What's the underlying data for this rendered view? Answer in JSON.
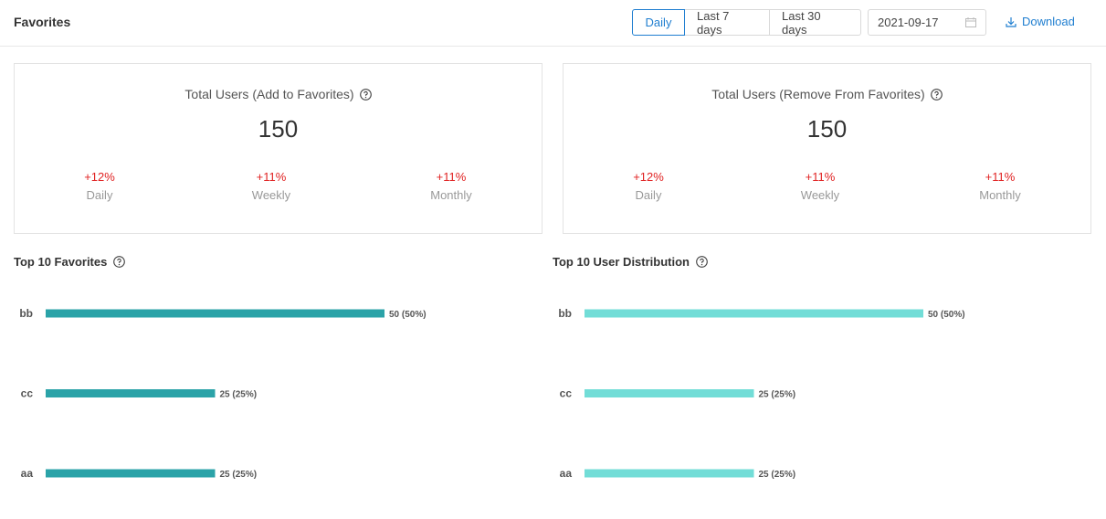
{
  "header": {
    "title": "Favorites",
    "tabs": [
      {
        "label": "Daily",
        "active": true
      },
      {
        "label": "Last 7 days",
        "active": false
      },
      {
        "label": "Last 30 days",
        "active": false
      }
    ],
    "date": "2021-09-17",
    "download_label": "Download"
  },
  "cards": [
    {
      "title": "Total Users (Add to Favorites)",
      "value": "150",
      "stats": [
        {
          "delta": "+12%",
          "label": "Daily"
        },
        {
          "delta": "+11%",
          "label": "Weekly"
        },
        {
          "delta": "+11%",
          "label": "Monthly"
        }
      ]
    },
    {
      "title": "Total Users (Remove From Favorites)",
      "value": "150",
      "stats": [
        {
          "delta": "+12%",
          "label": "Daily"
        },
        {
          "delta": "+11%",
          "label": "Weekly"
        },
        {
          "delta": "+11%",
          "label": "Monthly"
        }
      ]
    }
  ],
  "sections": [
    {
      "title": "Top 10 Favorites"
    },
    {
      "title": "Top 10 User Distribution"
    }
  ],
  "colors": {
    "accent": "#1f7ed0",
    "negative_delta": "#e02020",
    "bar_dark_teal": "#2ba3a8",
    "bar_light_teal": "#72ddd7"
  },
  "chart_data": [
    {
      "type": "bar",
      "orientation": "horizontal",
      "title": "Top 10 Favorites",
      "categories": [
        "bb",
        "cc",
        "aa"
      ],
      "values": [
        50,
        25,
        25
      ],
      "labels": [
        "50 (50%)",
        "25 (25%)",
        "25 (25%)"
      ],
      "xlim": [
        0,
        50
      ],
      "color": "#2ba3a8"
    },
    {
      "type": "bar",
      "orientation": "horizontal",
      "title": "Top 10 User Distribution",
      "categories": [
        "bb",
        "cc",
        "aa"
      ],
      "values": [
        50,
        25,
        25
      ],
      "labels": [
        "50 (50%)",
        "25 (25%)",
        "25 (25%)"
      ],
      "xlim": [
        0,
        50
      ],
      "color": "#72ddd7"
    }
  ]
}
